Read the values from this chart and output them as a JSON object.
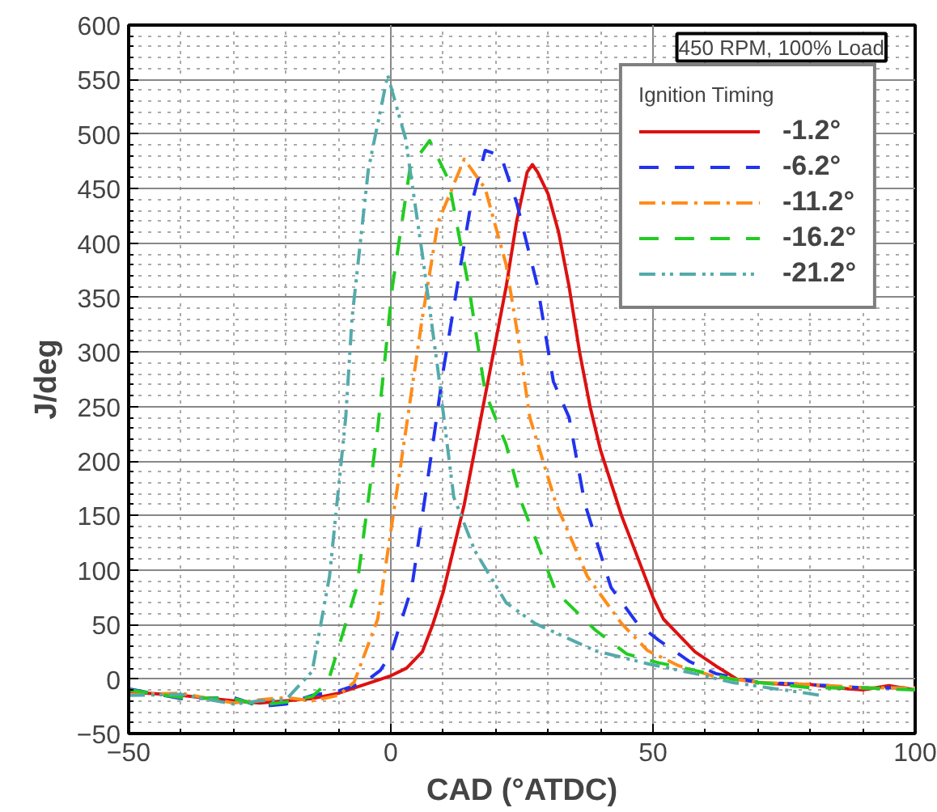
{
  "chart_data": {
    "type": "line",
    "xlabel": "CAD (°ATDC)",
    "ylabel": "J/deg",
    "legend_title": "Ignition Timing",
    "annotations": [
      "450 RPM, 100% Load"
    ],
    "xlim": [
      -50,
      100
    ],
    "ylim": [
      -50,
      600
    ],
    "xticks": [
      -50,
      0,
      50,
      100
    ],
    "yticks": [
      -50,
      0,
      50,
      100,
      150,
      200,
      250,
      300,
      350,
      400,
      450,
      500,
      550,
      600
    ],
    "grid": true,
    "legend": "top right",
    "marker": "none",
    "series": [
      {
        "name": "-1.2°",
        "color": "#dd1111",
        "line_style": "solid",
        "x": [
          -50,
          -40,
          -30,
          -25,
          -20,
          -15,
          -10,
          -5,
          0,
          3,
          6,
          8,
          10,
          12,
          14,
          16,
          18,
          20,
          22,
          24,
          26,
          27,
          28,
          30,
          32,
          34,
          36,
          38,
          40,
          42,
          44,
          46,
          48,
          50,
          52,
          55,
          58,
          62,
          66,
          70,
          75,
          80,
          85,
          90,
          95,
          100
        ],
        "values": [
          -12,
          -15,
          -20,
          -22,
          -20,
          -18,
          -13,
          -5,
          3,
          10,
          25,
          50,
          80,
          120,
          160,
          210,
          260,
          310,
          360,
          420,
          465,
          472,
          465,
          445,
          410,
          360,
          300,
          250,
          210,
          180,
          150,
          125,
          100,
          75,
          55,
          40,
          25,
          12,
          0,
          -3,
          -5,
          -5,
          -8,
          -10,
          -6,
          -10
        ]
      },
      {
        "name": "-6.2°",
        "color": "#2233ee",
        "line_style": "dashed",
        "x": [
          -50,
          -40,
          -30,
          -25,
          -20,
          -15,
          -10,
          -5,
          -2,
          0,
          4,
          8,
          10,
          15,
          18,
          21,
          24,
          28,
          31,
          34,
          37,
          42,
          47,
          51,
          57,
          62,
          70,
          80,
          90,
          100
        ],
        "values": [
          -9,
          -18,
          -17,
          -25,
          -23,
          -15,
          -11,
          -3,
          8,
          23,
          84,
          215,
          283,
          428,
          485,
          480,
          437,
          360,
          273,
          240,
          161,
          84,
          51,
          36,
          16,
          5,
          -3,
          -5,
          -8,
          -8
        ]
      },
      {
        "name": "-11.2°",
        "color": "#ff8c1a",
        "line_style": "dashdot",
        "x": [
          -50,
          -40,
          -30,
          -25,
          -20,
          -15,
          -10,
          -7,
          -2.5,
          2,
          6,
          9,
          14,
          18,
          22,
          24.5,
          26.5,
          31.5,
          37.5,
          44,
          49,
          55,
          62,
          70,
          80,
          90,
          100
        ],
        "values": [
          -14,
          -13,
          -22,
          -19,
          -17,
          -20,
          -15,
          -3,
          55,
          200,
          331,
          419,
          477,
          450,
          380,
          307,
          240,
          161,
          94,
          51,
          26,
          12,
          2,
          -3,
          -5,
          -8,
          -8
        ]
      },
      {
        "name": "-16.2°",
        "color": "#22cc22",
        "line_style": "dashed",
        "x": [
          -50,
          -40,
          -30,
          -25,
          -20,
          -15,
          -12,
          -6.5,
          -2.5,
          0.3,
          3.7,
          7.4,
          11,
          15,
          18,
          22,
          25,
          31.5,
          39,
          45,
          51,
          58,
          65,
          70,
          80,
          90,
          100
        ],
        "values": [
          -10,
          -17,
          -18,
          -24,
          -21,
          -16,
          -3,
          84,
          230,
          360,
          470,
          494,
          458,
          356,
          263,
          215,
          161,
          80,
          45,
          23,
          15,
          8,
          0,
          -3,
          -8,
          -8,
          -10
        ]
      },
      {
        "name": "-21.2°",
        "color": "#55aaaa",
        "line_style": "dashdotdot",
        "x": [
          -50,
          -40,
          -30,
          -25,
          -20,
          -15,
          -11.7,
          -8.6,
          -7.4,
          -4.3,
          -0.6,
          2.8,
          6,
          9,
          12,
          16,
          22,
          27.5,
          39,
          49,
          58,
          65,
          72,
          78,
          82
        ],
        "values": [
          -15,
          -14,
          -23,
          -20,
          -19,
          7,
          94,
          240,
          331,
          467,
          554,
          496,
          390,
          283,
          167,
          118,
          70,
          51,
          26,
          14,
          5,
          -3,
          -8,
          -12,
          -15
        ]
      }
    ]
  }
}
